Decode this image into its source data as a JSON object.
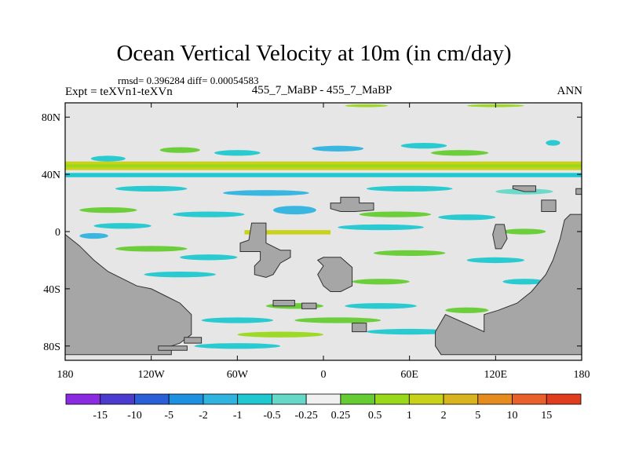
{
  "header": {
    "title": "Ocean Vertical Velocity at 10m (in cm/day)",
    "stats": "rmsd= 0.396284 diff= 0.00054583",
    "left_label": "Expt = teXVn1-teXVn",
    "center_label": "455_7_MaBP - 455_7_MaBP",
    "right_label": "ANN"
  },
  "chart_data": {
    "type": "heatmap",
    "title": "Ocean Vertical Velocity at 10m (in cm/day)",
    "xlim": [
      -180,
      180
    ],
    "ylim": [
      -90,
      90
    ],
    "x_ticks": [
      {
        "value": -180,
        "label": "180"
      },
      {
        "value": -120,
        "label": "120W"
      },
      {
        "value": -60,
        "label": "60W"
      },
      {
        "value": 0,
        "label": "0"
      },
      {
        "value": 60,
        "label": "60E"
      },
      {
        "value": 120,
        "label": "120E"
      },
      {
        "value": 180,
        "label": "180"
      }
    ],
    "y_ticks": [
      {
        "value": 80,
        "label": "80N"
      },
      {
        "value": 40,
        "label": "40N"
      },
      {
        "value": 0,
        "label": "0"
      },
      {
        "value": -40,
        "label": "40S"
      },
      {
        "value": -80,
        "label": "80S"
      }
    ],
    "colorbar": {
      "colors": [
        "#8a2be2",
        "#4b3ccf",
        "#2a5fd8",
        "#1e90e0",
        "#2fb4e0",
        "#20c8d0",
        "#66d8c8",
        "#f0f0f0",
        "#66cc33",
        "#99d81a",
        "#c8d21a",
        "#d8b41e",
        "#e68c1e",
        "#e8602a",
        "#e03c1e"
      ],
      "labels": [
        "-15",
        "-10",
        "-5",
        "-2",
        "-1",
        "-0.5",
        "-0.25",
        "0.25",
        "0.5",
        "1",
        "2",
        "5",
        "10",
        "15"
      ]
    },
    "background_color": "#e6e6e6",
    "land_color": "#a6a6a6",
    "bands": [
      {
        "lat_top": 49,
        "lat_bottom": 43,
        "lon_start": -180,
        "lon_end": 180,
        "color": "#c8d21a"
      },
      {
        "lat_top": 47,
        "lat_bottom": 45,
        "lon_start": -180,
        "lon_end": 180,
        "color": "#99d81a"
      },
      {
        "lat_top": 41,
        "lat_bottom": 38,
        "lon_start": -180,
        "lon_end": 180,
        "color": "#20c8d0"
      },
      {
        "lat_top": 1,
        "lat_bottom": -2,
        "lon_start": -55,
        "lon_end": 5,
        "color": "#c8d21a"
      }
    ],
    "blobs": [
      {
        "lon": -150,
        "lat": 51,
        "rx": 12,
        "ry": 2,
        "color": "#20c8d0"
      },
      {
        "lon": -100,
        "lat": 57,
        "rx": 14,
        "ry": 2,
        "color": "#66cc33"
      },
      {
        "lon": -60,
        "lat": 55,
        "rx": 16,
        "ry": 2,
        "color": "#20c8d0"
      },
      {
        "lon": 10,
        "lat": 58,
        "rx": 18,
        "ry": 2,
        "color": "#2fb4e0"
      },
      {
        "lon": 70,
        "lat": 60,
        "rx": 16,
        "ry": 2,
        "color": "#20c8d0"
      },
      {
        "lon": 95,
        "lat": 55,
        "rx": 20,
        "ry": 2,
        "color": "#66cc33"
      },
      {
        "lon": 160,
        "lat": 62,
        "rx": 5,
        "ry": 2,
        "color": "#20c8d0"
      },
      {
        "lon": 30,
        "lat": 88,
        "rx": 15,
        "ry": 1,
        "color": "#99d81a"
      },
      {
        "lon": 120,
        "lat": 88,
        "rx": 20,
        "ry": 1,
        "color": "#99d81a"
      },
      {
        "lon": -120,
        "lat": 30,
        "rx": 25,
        "ry": 2,
        "color": "#20c8d0"
      },
      {
        "lon": -40,
        "lat": 27,
        "rx": 30,
        "ry": 2,
        "color": "#2fb4e0"
      },
      {
        "lon": 60,
        "lat": 30,
        "rx": 30,
        "ry": 2,
        "color": "#20c8d0"
      },
      {
        "lon": 140,
        "lat": 28,
        "rx": 20,
        "ry": 2,
        "color": "#66d8c8"
      },
      {
        "lon": -150,
        "lat": 15,
        "rx": 20,
        "ry": 2,
        "color": "#66cc33"
      },
      {
        "lon": -80,
        "lat": 12,
        "rx": 25,
        "ry": 2,
        "color": "#20c8d0"
      },
      {
        "lon": -20,
        "lat": 15,
        "rx": 15,
        "ry": 3,
        "color": "#2fb4e0"
      },
      {
        "lon": 50,
        "lat": 12,
        "rx": 25,
        "ry": 2,
        "color": "#66cc33"
      },
      {
        "lon": 100,
        "lat": 10,
        "rx": 20,
        "ry": 2,
        "color": "#20c8d0"
      },
      {
        "lon": -140,
        "lat": 4,
        "rx": 20,
        "ry": 2,
        "color": "#20c8d0"
      },
      {
        "lon": -160,
        "lat": -3,
        "rx": 10,
        "ry": 2,
        "color": "#2fb4e0"
      },
      {
        "lon": 40,
        "lat": 3,
        "rx": 30,
        "ry": 2,
        "color": "#20c8d0"
      },
      {
        "lon": 140,
        "lat": 0,
        "rx": 15,
        "ry": 2,
        "color": "#66cc33"
      },
      {
        "lon": -120,
        "lat": -12,
        "rx": 25,
        "ry": 2,
        "color": "#66cc33"
      },
      {
        "lon": -80,
        "lat": -18,
        "rx": 20,
        "ry": 2,
        "color": "#20c8d0"
      },
      {
        "lon": 60,
        "lat": -15,
        "rx": 25,
        "ry": 2,
        "color": "#66cc33"
      },
      {
        "lon": 120,
        "lat": -20,
        "rx": 20,
        "ry": 2,
        "color": "#20c8d0"
      },
      {
        "lon": -100,
        "lat": -30,
        "rx": 25,
        "ry": 2,
        "color": "#20c8d0"
      },
      {
        "lon": 40,
        "lat": -35,
        "rx": 20,
        "ry": 2,
        "color": "#66cc33"
      },
      {
        "lon": 140,
        "lat": -35,
        "rx": 15,
        "ry": 2,
        "color": "#20c8d0"
      },
      {
        "lon": -20,
        "lat": -52,
        "rx": 20,
        "ry": 2,
        "color": "#66cc33"
      },
      {
        "lon": 40,
        "lat": -52,
        "rx": 25,
        "ry": 2,
        "color": "#20c8d0"
      },
      {
        "lon": 100,
        "lat": -55,
        "rx": 15,
        "ry": 2,
        "color": "#66cc33"
      },
      {
        "lon": -60,
        "lat": -62,
        "rx": 25,
        "ry": 2,
        "color": "#20c8d0"
      },
      {
        "lon": 10,
        "lat": -62,
        "rx": 30,
        "ry": 2,
        "color": "#66cc33"
      },
      {
        "lon": -30,
        "lat": -72,
        "rx": 30,
        "ry": 2,
        "color": "#99d81a"
      },
      {
        "lon": 60,
        "lat": -70,
        "rx": 30,
        "ry": 2,
        "color": "#20c8d0"
      },
      {
        "lon": -130,
        "lat": -70,
        "rx": 15,
        "ry": 2,
        "color": "#20c8d0"
      },
      {
        "lon": -60,
        "lat": -80,
        "rx": 30,
        "ry": 2,
        "color": "#20c8d0"
      }
    ],
    "land": [
      [
        [
          -180,
          -2
        ],
        [
          -170,
          -10
        ],
        [
          -160,
          -20
        ],
        [
          -150,
          -28
        ],
        [
          -140,
          -33
        ],
        [
          -130,
          -38
        ],
        [
          -120,
          -40
        ],
        [
          -110,
          -45
        ],
        [
          -100,
          -50
        ],
        [
          -92,
          -58
        ],
        [
          -92,
          -72
        ],
        [
          -100,
          -78
        ],
        [
          -106,
          -80
        ],
        [
          -106,
          -86
        ],
        [
          -180,
          -86
        ]
      ],
      [
        [
          -115,
          -80
        ],
        [
          -95,
          -80
        ],
        [
          -95,
          -83
        ],
        [
          -115,
          -83
        ]
      ],
      [
        [
          -97,
          -74
        ],
        [
          -85,
          -74
        ],
        [
          -85,
          -78
        ],
        [
          -97,
          -78
        ]
      ],
      [
        [
          -50,
          6
        ],
        [
          -40,
          6
        ],
        [
          -40,
          -8
        ],
        [
          -30,
          -13
        ],
        [
          -23,
          -13
        ],
        [
          -23,
          -18
        ],
        [
          -30,
          -22
        ],
        [
          -35,
          -30
        ],
        [
          -40,
          -32
        ],
        [
          -48,
          -30
        ],
        [
          -48,
          -24
        ],
        [
          -44,
          -20
        ],
        [
          -44,
          -14
        ],
        [
          -58,
          -14
        ],
        [
          -58,
          -8
        ],
        [
          -52,
          -6
        ]
      ],
      [
        [
          -35,
          -48
        ],
        [
          -20,
          -48
        ],
        [
          -20,
          -52
        ],
        [
          -35,
          -52
        ]
      ],
      [
        [
          -15,
          -50
        ],
        [
          -5,
          -50
        ],
        [
          -5,
          -54
        ],
        [
          -15,
          -54
        ]
      ],
      [
        [
          0,
          -18
        ],
        [
          12,
          -18
        ],
        [
          20,
          -25
        ],
        [
          20,
          -38
        ],
        [
          12,
          -42
        ],
        [
          5,
          -42
        ],
        [
          0,
          -38
        ],
        [
          -4,
          -30
        ],
        [
          0,
          -24
        ],
        [
          -4,
          -20
        ]
      ],
      [
        [
          5,
          20
        ],
        [
          12,
          20
        ],
        [
          12,
          24
        ],
        [
          25,
          24
        ],
        [
          25,
          20
        ],
        [
          35,
          20
        ],
        [
          35,
          15
        ],
        [
          22,
          14
        ],
        [
          12,
          14
        ],
        [
          5,
          16
        ]
      ],
      [
        [
          20,
          -64
        ],
        [
          30,
          -64
        ],
        [
          30,
          -70
        ],
        [
          20,
          -70
        ]
      ],
      [
        [
          112,
          -70
        ],
        [
          112,
          -58
        ],
        [
          122,
          -55
        ],
        [
          135,
          -50
        ],
        [
          145,
          -42
        ],
        [
          155,
          -30
        ],
        [
          160,
          -20
        ],
        [
          165,
          -5
        ],
        [
          168,
          8
        ],
        [
          172,
          12
        ],
        [
          180,
          12
        ],
        [
          180,
          -86
        ],
        [
          82,
          -86
        ],
        [
          78,
          -80
        ],
        [
          78,
          -70
        ],
        [
          85,
          -58
        ]
      ],
      [
        [
          120,
          5
        ],
        [
          126,
          5
        ],
        [
          128,
          -5
        ],
        [
          124,
          -12
        ],
        [
          120,
          -12
        ],
        [
          118,
          -2
        ]
      ],
      [
        [
          132,
          32
        ],
        [
          148,
          32
        ],
        [
          148,
          28
        ],
        [
          140,
          28
        ],
        [
          132,
          30
        ]
      ],
      [
        [
          152,
          22
        ],
        [
          162,
          22
        ],
        [
          162,
          14
        ],
        [
          152,
          14
        ]
      ],
      [
        [
          176,
          30
        ],
        [
          180,
          30
        ],
        [
          180,
          26
        ],
        [
          176,
          26
        ]
      ]
    ]
  }
}
